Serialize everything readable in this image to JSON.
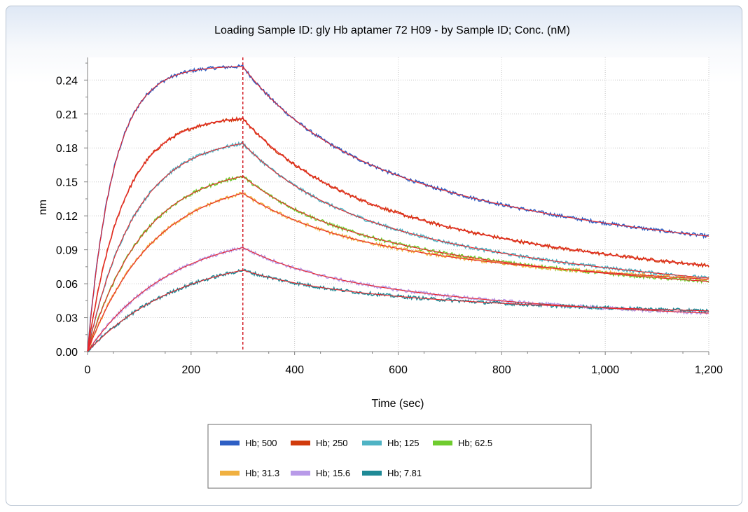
{
  "chart_data": {
    "type": "line",
    "title": "Loading Sample ID: gly Hb aptamer 72 H09 - by Sample ID; Conc. (nM)",
    "xlabel": "Time (sec)",
    "ylabel": "nm",
    "xlim": [
      0,
      1200
    ],
    "ylim": [
      0,
      0.26
    ],
    "x_ticks": [
      0,
      200,
      400,
      600,
      800,
      1000,
      1200
    ],
    "x_tick_labels": [
      "0",
      "200",
      "400",
      "600",
      "800",
      "1,000",
      "1,200"
    ],
    "y_ticks": [
      0,
      0.03,
      0.06,
      0.09,
      0.12,
      0.15,
      0.18,
      0.21,
      0.24
    ],
    "y_tick_labels": [
      "0.00",
      "0.03",
      "0.06",
      "0.09",
      "0.12",
      "0.15",
      "0.18",
      "0.21",
      "0.24"
    ],
    "grid": true,
    "legend_position": "bottom",
    "association_end_marker_x": 300,
    "fit_color": "#e8262d",
    "series": [
      {
        "name": "Hb; 500",
        "color": "#2e5fc4",
        "peak": 0.252,
        "end": 0.102
      },
      {
        "name": "Hb; 250",
        "color": "#d13b0c",
        "peak": 0.206,
        "end": 0.076
      },
      {
        "name": "Hb; 125",
        "color": "#4fb3c4",
        "peak": 0.184,
        "end": 0.065
      },
      {
        "name": "Hb; 62.5",
        "color": "#6fcc2e",
        "peak": 0.155,
        "end": 0.062
      },
      {
        "name": "Hb; 31.3",
        "color": "#f0b040",
        "peak": 0.14,
        "end": 0.064
      },
      {
        "name": "Hb; 15.6",
        "color": "#b89ae8",
        "peak": 0.092,
        "end": 0.034
      },
      {
        "name": "Hb; 7.81",
        "color": "#1f8a96",
        "peak": 0.072,
        "end": 0.036
      }
    ]
  }
}
